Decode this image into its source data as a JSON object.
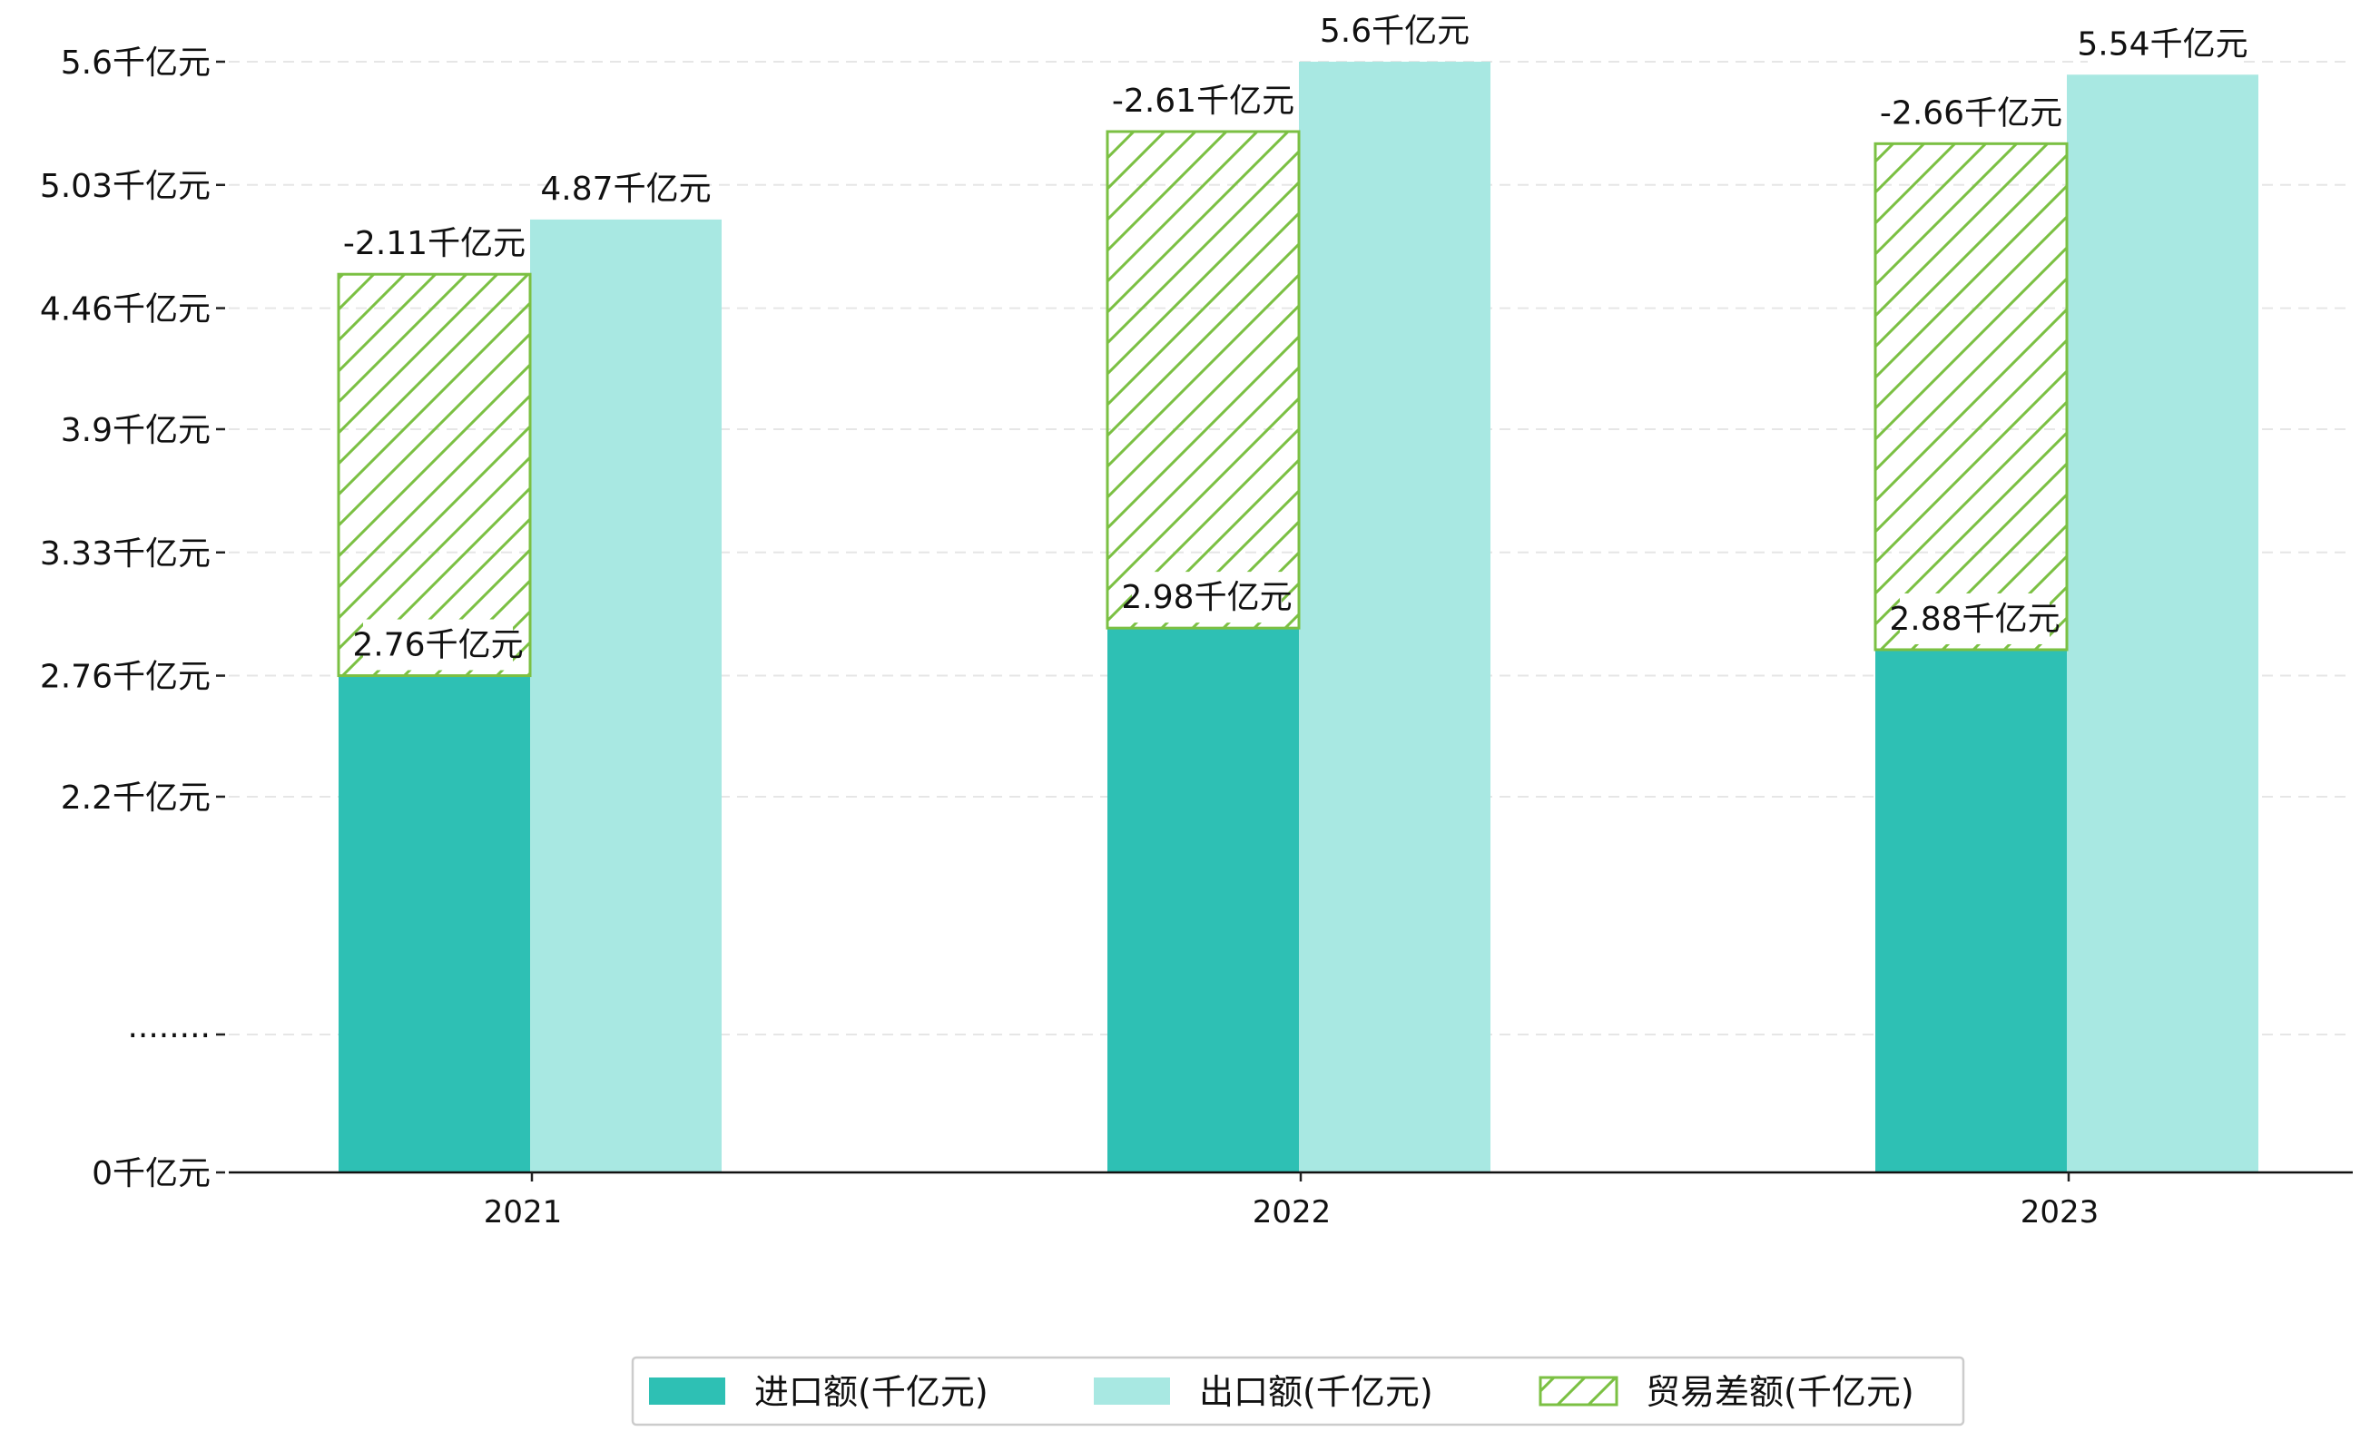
{
  "chart_data": {
    "type": "bar",
    "categories": [
      "2021",
      "2022",
      "2023"
    ],
    "series": [
      {
        "name": "进口额(千亿元)",
        "values": [
          2.76,
          2.98,
          2.88
        ],
        "color": "#2ec0b4",
        "labels": [
          "2.76千亿元",
          "2.98千亿元",
          "2.88千亿元"
        ]
      },
      {
        "name": "出口额(千亿元)",
        "values": [
          4.87,
          5.6,
          5.54
        ],
        "color": "#a8e8e2",
        "labels": [
          "4.87千亿元",
          "5.6千亿元",
          "5.54千亿元"
        ]
      },
      {
        "name": "贸易差额(千亿元)",
        "values": [
          -2.11,
          -2.61,
          -2.66
        ],
        "color": "#7bc043",
        "hatch": true,
        "labels": [
          "-2.11千亿元",
          "-2.61千亿元",
          "-2.66千亿元"
        ]
      }
    ],
    "yticks": [
      {
        "value": 0,
        "label": "0千亿元"
      },
      {
        "value": 1.1,
        "label": "········"
      },
      {
        "value": 2.2,
        "label": "2.2千亿元"
      },
      {
        "value": 2.76,
        "label": "2.76千亿元"
      },
      {
        "value": 3.33,
        "label": "3.33千亿元"
      },
      {
        "value": 3.9,
        "label": "3.9千亿元"
      },
      {
        "value": 4.46,
        "label": "4.46千亿元"
      },
      {
        "value": 5.03,
        "label": "5.03千亿元"
      },
      {
        "value": 5.6,
        "label": "5.6千亿元"
      }
    ],
    "axis_note": "y-axis is broken between 0 and 2.2",
    "grid": true,
    "legend_position": "bottom-center",
    "title": "",
    "xlabel": "",
    "ylabel": ""
  }
}
